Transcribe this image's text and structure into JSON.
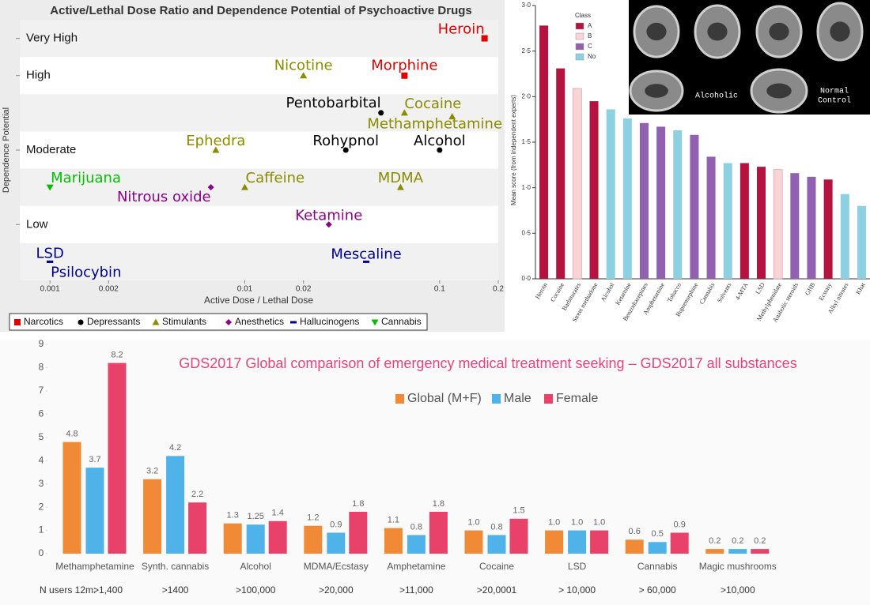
{
  "chart_data": [
    {
      "type": "scatter",
      "title": "Active/Lethal Dose Ratio and Dependence Potential of Psychoactive Drugs",
      "x_label": "Active Dose / Lethal Dose",
      "y_label": "Dependence Potential",
      "x_scale": "log",
      "xlim": [
        0.0007,
        0.2
      ],
      "xticks": [
        0.001,
        0.002,
        0.01,
        0.02,
        0.1,
        0.2
      ],
      "ylim": [
        0,
        7
      ],
      "yticks": [
        {
          "value": 6.5,
          "label": "Very High"
        },
        {
          "value": 5.5,
          "label": "High"
        },
        {
          "value": 3.5,
          "label": "Moderate"
        },
        {
          "value": 1.5,
          "label": "Low"
        }
      ],
      "series": [
        {
          "name": "Narcotics",
          "color": "#e00000",
          "marker": "square",
          "labels": [
            "Heroin",
            "Morphine"
          ],
          "x": [
            0.17,
            0.066
          ],
          "y": [
            6.5,
            5.5
          ]
        },
        {
          "name": "Depressants",
          "color": "#000000",
          "marker": "circle",
          "labels": [
            "Pentobarbital",
            "Rohypnol",
            "Alcohol"
          ],
          "x": [
            0.05,
            0.033,
            0.1
          ],
          "y": [
            4.5,
            3.5,
            3.5
          ]
        },
        {
          "name": "Stimulants",
          "color": "#8b8b00",
          "marker": "triangle",
          "labels": [
            "Nicotine",
            "Cocaine",
            "Methamphetamine",
            "Ephedra",
            "Caffeine",
            "MDMA"
          ],
          "x": [
            0.02,
            0.066,
            0.116,
            0.0071,
            0.01,
            0.063
          ],
          "y": [
            5.5,
            4.5,
            4.4,
            3.5,
            2.5,
            2.5
          ]
        },
        {
          "name": "Anesthetics",
          "color": "#8b008b",
          "marker": "diamond",
          "labels": [
            "Nitrous oxide",
            "Ketamine"
          ],
          "x": [
            0.0067,
            0.027
          ],
          "y": [
            2.5,
            1.5
          ]
        },
        {
          "name": "Hallucinogens",
          "color": "#00008b",
          "marker": "dash",
          "labels": [
            "LSD",
            "Psilocybin",
            "Mescaline"
          ],
          "x": [
            0.001,
            0.001,
            0.042
          ],
          "y": [
            0.5,
            0.5,
            0.5
          ]
        },
        {
          "name": "Cannabis",
          "color": "#00c000",
          "marker": "triangle-down",
          "labels": [
            "Marijuana"
          ],
          "x": [
            0.001
          ],
          "y": [
            2.5
          ]
        }
      ]
    },
    {
      "type": "bar",
      "y_label": "Mean score (from independent experts)",
      "categories": [
        "Heroin",
        "Cocaine",
        "Barbiturates",
        "Street methadone",
        "Alcohol",
        "Ketamine",
        "Benzodiazepines",
        "Amphetamine",
        "Tobacco",
        "Buprenorphine",
        "Cannabis",
        "Solvents",
        "4-MTA",
        "LSD",
        "Methylphenidate",
        "Anabolic steroids",
        "GHB",
        "Ecstasy",
        "Alkyl nitrates",
        "Khat"
      ],
      "values": [
        2.78,
        2.31,
        2.09,
        1.95,
        1.86,
        1.76,
        1.71,
        1.67,
        1.63,
        1.58,
        1.34,
        1.27,
        1.27,
        1.23,
        1.2,
        1.16,
        1.12,
        1.09,
        0.93,
        0.8
      ],
      "classes": [
        "A",
        "A",
        "B",
        "A",
        "No",
        "No",
        "C",
        "C",
        "No",
        "C",
        "C",
        "No",
        "A",
        "A",
        "B",
        "C",
        "C",
        "A",
        "No",
        "No"
      ],
      "legend": {
        "title": "Class",
        "items": [
          {
            "name": "A",
            "color": "#b5123f"
          },
          {
            "name": "B",
            "color": "#f9d4d6"
          },
          {
            "name": "C",
            "color": "#9160b0"
          },
          {
            "name": "No",
            "color": "#8dd0e2"
          }
        ]
      },
      "ylim": [
        0,
        3
      ],
      "yticks": [
        {
          "value": 0,
          "label": "0·0"
        },
        {
          "value": 0.5,
          "label": "0·5"
        },
        {
          "value": 1,
          "label": "1·0"
        },
        {
          "value": 1.5,
          "label": "1·5"
        },
        {
          "value": 2,
          "label": "2·0"
        },
        {
          "value": 2.5,
          "label": "2·5"
        },
        {
          "value": 3,
          "label": "3·0"
        }
      ]
    },
    {
      "type": "bar",
      "title": "GDS2017 Global comparison of emergency medical treatment seeking – GDS2017 all substances",
      "categories": [
        "Methamphetamine",
        "Synth. cannabis",
        "Alcohol",
        "MDMA/Ecstasy",
        "Amphetamine",
        "Cocaine",
        "LSD",
        "Cannabis",
        "Magic mushrooms"
      ],
      "series": [
        {
          "name": "Global (M+F)",
          "color": "#f08a36",
          "values": [
            4.8,
            3.2,
            1.3,
            1.2,
            1.1,
            1,
            1,
            0.6,
            0.2
          ],
          "value_labels": [
            "4.8",
            "3.2",
            "1.3",
            "1.2",
            "1.1",
            "1.0",
            "1.0",
            "0.6",
            "0.2"
          ]
        },
        {
          "name": "Male",
          "color": "#4fb3ea",
          "values": [
            3.7,
            4.2,
            1.25,
            0.9,
            0.8,
            0.8,
            1,
            0.5,
            0.2
          ],
          "value_labels": [
            "3.7",
            "4.2",
            "1.25",
            "0.9",
            "0.8",
            "0.8",
            "1.0",
            "0.5",
            "0.2"
          ]
        },
        {
          "name": "Female",
          "color": "#e8416a",
          "values": [
            8.2,
            2.2,
            1.4,
            1.8,
            1.8,
            1.5,
            1,
            0.9,
            0.2
          ],
          "value_labels": [
            "8.2",
            "2.2",
            "1.4",
            "1.8",
            "1.8",
            "1.5",
            "1.0",
            "0.9",
            "0.2"
          ]
        }
      ],
      "ylim": [
        0,
        9
      ],
      "yticks": [
        0,
        1,
        2,
        3,
        4,
        5,
        6,
        7,
        8,
        9
      ],
      "n_users_label": "N users 12m:",
      "n_users": [
        ">1,400",
        ">1400",
        ">100,000",
        ">20,000",
        ">11,000",
        ">20,0001",
        "> 10,000",
        "> 60,000",
        ">10,000"
      ]
    }
  ],
  "image_labels": [
    "Alcoholic",
    "Normal",
    "Control"
  ]
}
